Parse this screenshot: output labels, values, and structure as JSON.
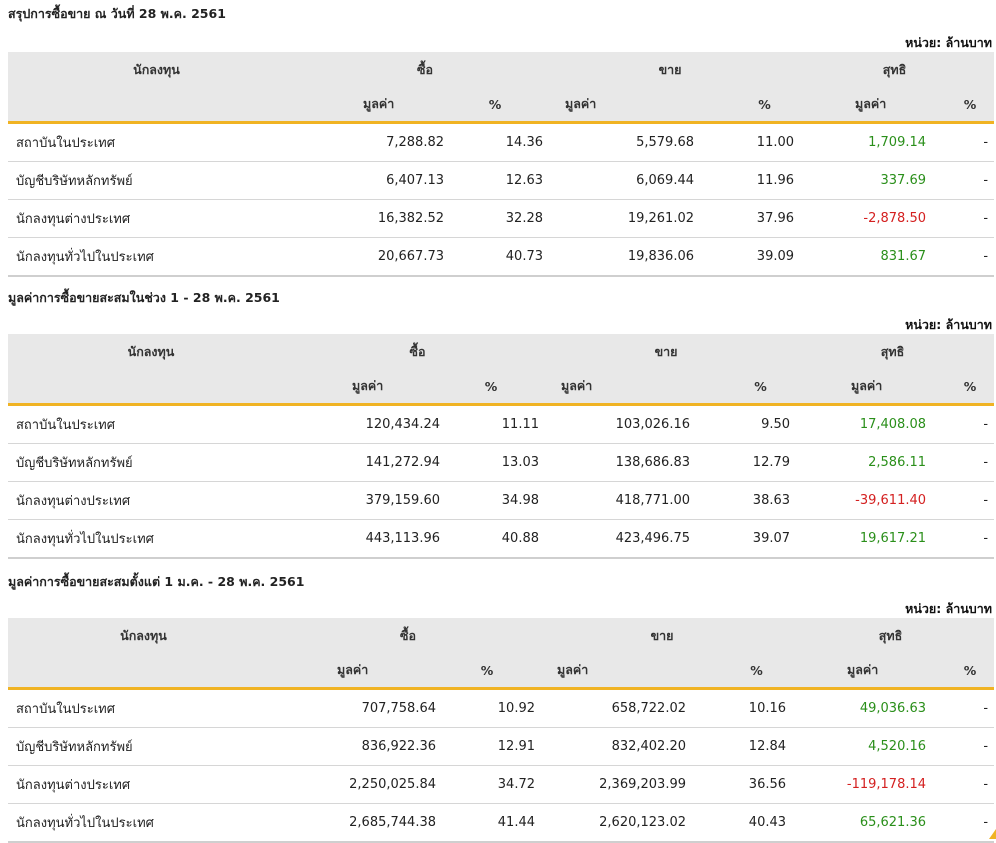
{
  "sections": [
    {
      "title": "สรุปการซื้อขาย ณ วันที่ 28 พ.ค. 2561",
      "unit": "หน่วย: ล้านบาท",
      "headers": {
        "investor": "นักลงทุน",
        "buy": "ซื้อ",
        "sell": "ขาย",
        "net": "สุทธิ",
        "value": "มูลค่า",
        "pct": "%"
      },
      "rows": [
        {
          "name": "สถาบันในประเทศ",
          "buy_value": "7,288.82",
          "buy_pct": "14.36",
          "sell_value": "5,579.68",
          "sell_pct": "11.00",
          "net_value": "1,709.14",
          "net_pct": "-"
        },
        {
          "name": "บัญชีบริษัทหลักทรัพย์",
          "buy_value": "6,407.13",
          "buy_pct": "12.63",
          "sell_value": "6,069.44",
          "sell_pct": "11.96",
          "net_value": "337.69",
          "net_pct": "-"
        },
        {
          "name": "นักลงทุนต่างประเทศ",
          "buy_value": "16,382.52",
          "buy_pct": "32.28",
          "sell_value": "19,261.02",
          "sell_pct": "37.96",
          "net_value": "-2,878.50",
          "net_pct": "-"
        },
        {
          "name": "นักลงทุนทั่วไปในประเทศ",
          "buy_value": "20,667.73",
          "buy_pct": "40.73",
          "sell_value": "19,836.06",
          "sell_pct": "39.09",
          "net_value": "831.67",
          "net_pct": "-"
        }
      ]
    },
    {
      "title": "มูลค่าการซื้อขายสะสมในช่วง 1 - 28 พ.ค. 2561",
      "unit": "หน่วย: ล้านบาท",
      "headers": {
        "investor": "นักลงทุน",
        "buy": "ซื้อ",
        "sell": "ขาย",
        "net": "สุทธิ",
        "value": "มูลค่า",
        "pct": "%"
      },
      "rows": [
        {
          "name": "สถาบันในประเทศ",
          "buy_value": "120,434.24",
          "buy_pct": "11.11",
          "sell_value": "103,026.16",
          "sell_pct": "9.50",
          "net_value": "17,408.08",
          "net_pct": "-"
        },
        {
          "name": "บัญชีบริษัทหลักทรัพย์",
          "buy_value": "141,272.94",
          "buy_pct": "13.03",
          "sell_value": "138,686.83",
          "sell_pct": "12.79",
          "net_value": "2,586.11",
          "net_pct": "-"
        },
        {
          "name": "นักลงทุนต่างประเทศ",
          "buy_value": "379,159.60",
          "buy_pct": "34.98",
          "sell_value": "418,771.00",
          "sell_pct": "38.63",
          "net_value": "-39,611.40",
          "net_pct": "-"
        },
        {
          "name": "นักลงทุนทั่วไปในประเทศ",
          "buy_value": "443,113.96",
          "buy_pct": "40.88",
          "sell_value": "423,496.75",
          "sell_pct": "39.07",
          "net_value": "19,617.21",
          "net_pct": "-"
        }
      ]
    },
    {
      "title": "มูลค่าการซื้อขายสะสมตั้งแต่ 1 ม.ค. - 28 พ.ค. 2561",
      "unit": "หน่วย: ล้านบาท",
      "headers": {
        "investor": "นักลงทุน",
        "buy": "ซื้อ",
        "sell": "ขาย",
        "net": "สุทธิ",
        "value": "มูลค่า",
        "pct": "%"
      },
      "rows": [
        {
          "name": "สถาบันในประเทศ",
          "buy_value": "707,758.64",
          "buy_pct": "10.92",
          "sell_value": "658,722.02",
          "sell_pct": "10.16",
          "net_value": "49,036.63",
          "net_pct": "-"
        },
        {
          "name": "บัญชีบริษัทหลักทรัพย์",
          "buy_value": "836,922.36",
          "buy_pct": "12.91",
          "sell_value": "832,402.20",
          "sell_pct": "12.84",
          "net_value": "4,520.16",
          "net_pct": "-"
        },
        {
          "name": "นักลงทุนต่างประเทศ",
          "buy_value": "2,250,025.84",
          "buy_pct": "34.72",
          "sell_value": "2,369,203.99",
          "sell_pct": "36.56",
          "net_value": "-119,178.14",
          "net_pct": "-"
        },
        {
          "name": "นักลงทุนทั่วไปในประเทศ",
          "buy_value": "2,685,744.38",
          "buy_pct": "41.44",
          "sell_value": "2,620,123.02",
          "sell_pct": "40.43",
          "net_value": "65,621.36",
          "net_pct": "-"
        }
      ]
    }
  ],
  "colors": {
    "positive": "#2a8f1a",
    "negative": "#d42020",
    "accent": "#f0b323",
    "header_bg": "#e8e8e8"
  }
}
